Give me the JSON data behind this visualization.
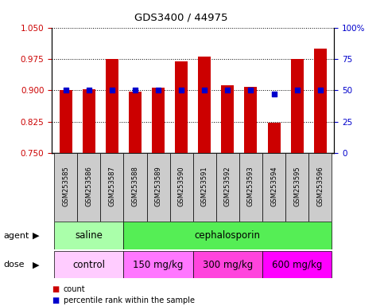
{
  "title": "GDS3400 / 44975",
  "samples": [
    "GSM253585",
    "GSM253586",
    "GSM253587",
    "GSM253588",
    "GSM253589",
    "GSM253590",
    "GSM253591",
    "GSM253592",
    "GSM253593",
    "GSM253594",
    "GSM253595",
    "GSM253596"
  ],
  "count_values": [
    0.9,
    0.902,
    0.975,
    0.897,
    0.907,
    0.97,
    0.98,
    0.912,
    0.908,
    0.822,
    0.975,
    1.0
  ],
  "percentile_values": [
    50,
    50,
    50,
    50,
    50,
    50,
    50,
    50,
    50,
    47,
    50,
    50
  ],
  "ylim_left": [
    0.75,
    1.05
  ],
  "ylim_right": [
    0,
    100
  ],
  "yticks_left": [
    0.75,
    0.825,
    0.9,
    0.975,
    1.05
  ],
  "yticks_right": [
    0,
    25,
    50,
    75,
    100
  ],
  "bar_color": "#cc0000",
  "dot_color": "#0000cc",
  "agent_groups": [
    {
      "label": "saline",
      "start": 0,
      "end": 3,
      "color": "#aaffaa"
    },
    {
      "label": "cephalosporin",
      "start": 3,
      "end": 12,
      "color": "#55ee55"
    }
  ],
  "dose_groups": [
    {
      "label": "control",
      "start": 0,
      "end": 3,
      "color": "#ffccff"
    },
    {
      "label": "150 mg/kg",
      "start": 3,
      "end": 6,
      "color": "#ff77ff"
    },
    {
      "label": "300 mg/kg",
      "start": 6,
      "end": 9,
      "color": "#ff44dd"
    },
    {
      "label": "600 mg/kg",
      "start": 9,
      "end": 12,
      "color": "#ff00ff"
    }
  ],
  "legend_count_color": "#cc0000",
  "legend_dot_color": "#0000cc",
  "tick_label_color_left": "#cc0000",
  "tick_label_color_right": "#0000cc",
  "sample_bg": "#cccccc",
  "fig_width": 4.83,
  "fig_height": 3.84,
  "dpi": 100
}
